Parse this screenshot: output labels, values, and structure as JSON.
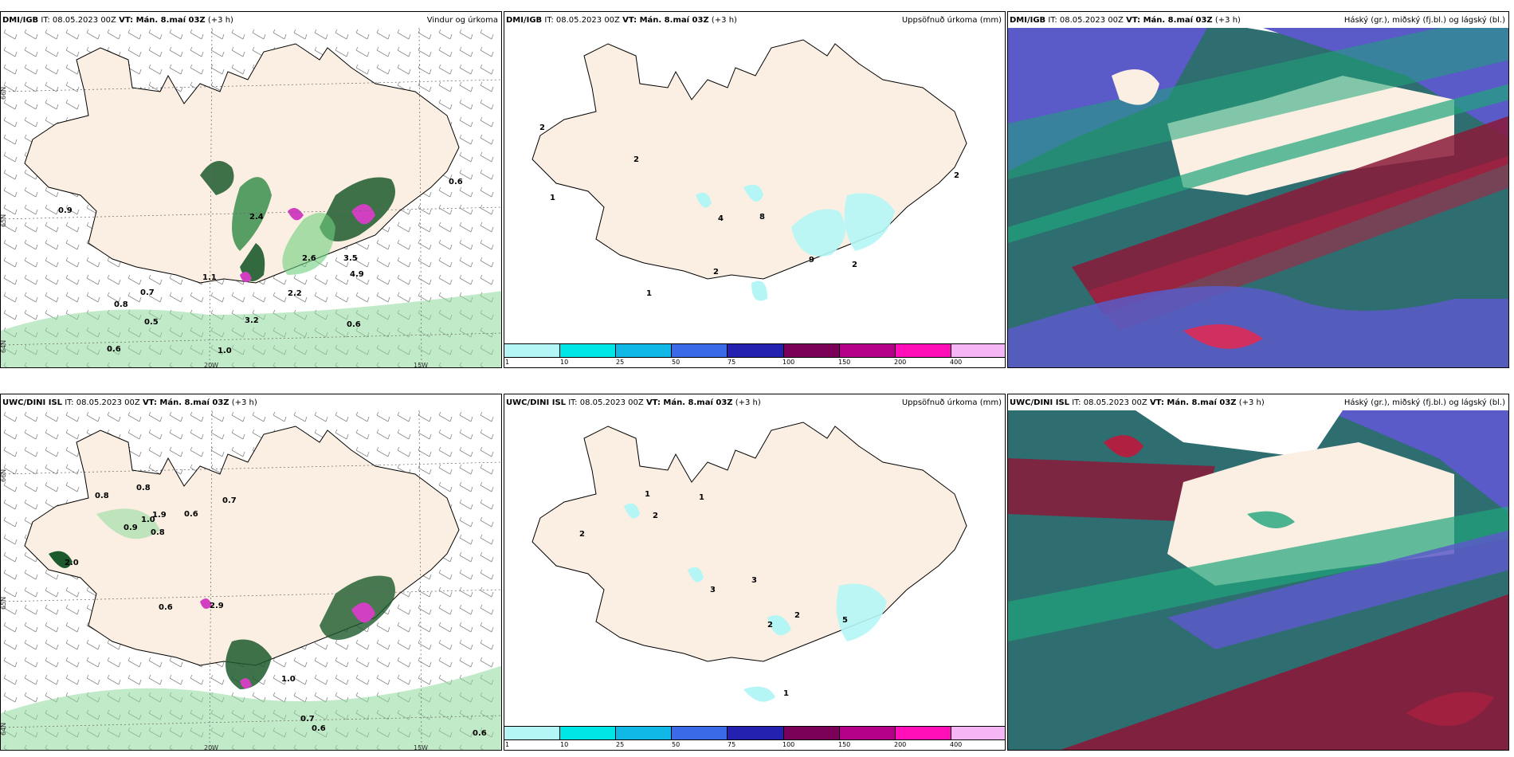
{
  "panels": [
    {
      "model": "DMI/IGB",
      "it": "IT: 08.05.2023 00Z",
      "vt": "VT: Mán. 8.maí 03Z",
      "lead": "(+3 h)",
      "title": "Vindur og úrkoma"
    },
    {
      "model": "DMI/IGB",
      "it": "IT: 08.05.2023 00Z",
      "vt": "VT: Mán. 8.maí 03Z",
      "lead": "(+3 h)",
      "title": "Uppsöfnuð úrkoma (mm)"
    },
    {
      "model": "DMI/IGB",
      "it": "IT: 08.05.2023 00Z",
      "vt": "VT: Mán. 8.maí 03Z",
      "lead": "(+3 h)",
      "title": "Háský (gr.), miðský (fj.bl.) og lágský (bl.)"
    },
    {
      "model": "UWC/DINI ISL",
      "it": "IT: 08.05.2023 00Z",
      "vt": "VT: Mán. 8.maí 03Z",
      "lead": "(+3 h)",
      "title": ""
    },
    {
      "model": "UWC/DINI ISL",
      "it": "IT: 08.05.2023 00Z",
      "vt": "VT: Mán. 8.maí 03Z",
      "lead": "(+3 h)",
      "title": "Uppsöfnuð úrkoma (mm)"
    },
    {
      "model": "UWC/DINI ISL",
      "it": "IT: 08.05.2023 00Z",
      "vt": "VT: Mán. 8.maí 03Z",
      "lead": "(+3 h)",
      "title": "Háský (gr.), miðský (fj.bl.) og lágský (bl.)"
    }
  ],
  "axes": {
    "lat66": "66N",
    "lat65": "65N",
    "lat64": "64N",
    "lon20": "20W",
    "lon15": "15W",
    "lat66r": "66N",
    "lat65r": "65N",
    "lat64r": "64N"
  },
  "wind_labels_top": [
    "0.9",
    "0.6",
    "2.4",
    "1.1",
    "0.7",
    "0.8",
    "0.5",
    "0.6",
    "1.0",
    "3.2",
    "2.6",
    "3.5",
    "4.9",
    "2.2",
    "0.6"
  ],
  "wind_labels_bottom": [
    "0.8",
    "0.8",
    "0.6",
    "0.7",
    "0.9",
    "1.0",
    "0.8",
    "1.9",
    "2.0",
    "0.6",
    "2.9",
    "0.7",
    "0.6",
    "1.0",
    "0.6"
  ],
  "precip_labels_top": [
    "2",
    "2",
    "8",
    "4",
    "2",
    "1",
    "9",
    "2",
    "1",
    "2"
  ],
  "precip_labels_bottom": [
    "2",
    "2",
    "1",
    "3",
    "3",
    "1",
    "2",
    "2",
    "5",
    "1"
  ],
  "colorbar": {
    "ticks": [
      "1",
      "10",
      "25",
      "50",
      "75",
      "100",
      "150",
      "200",
      "400"
    ],
    "colors": [
      "#b4f6f6",
      "#00e5e5",
      "#10b8e8",
      "#3a6ae8",
      "#2420b0",
      "#7a0058",
      "#b40088",
      "#ff0fb8",
      "#f6b6f6"
    ]
  },
  "colors": {
    "land": "#faefe2",
    "cloud_high": "#b02040",
    "cloud_mid": "#1fa47a",
    "cloud_low": "#5a5ac8",
    "sea_cloud": "#2e6e70"
  }
}
